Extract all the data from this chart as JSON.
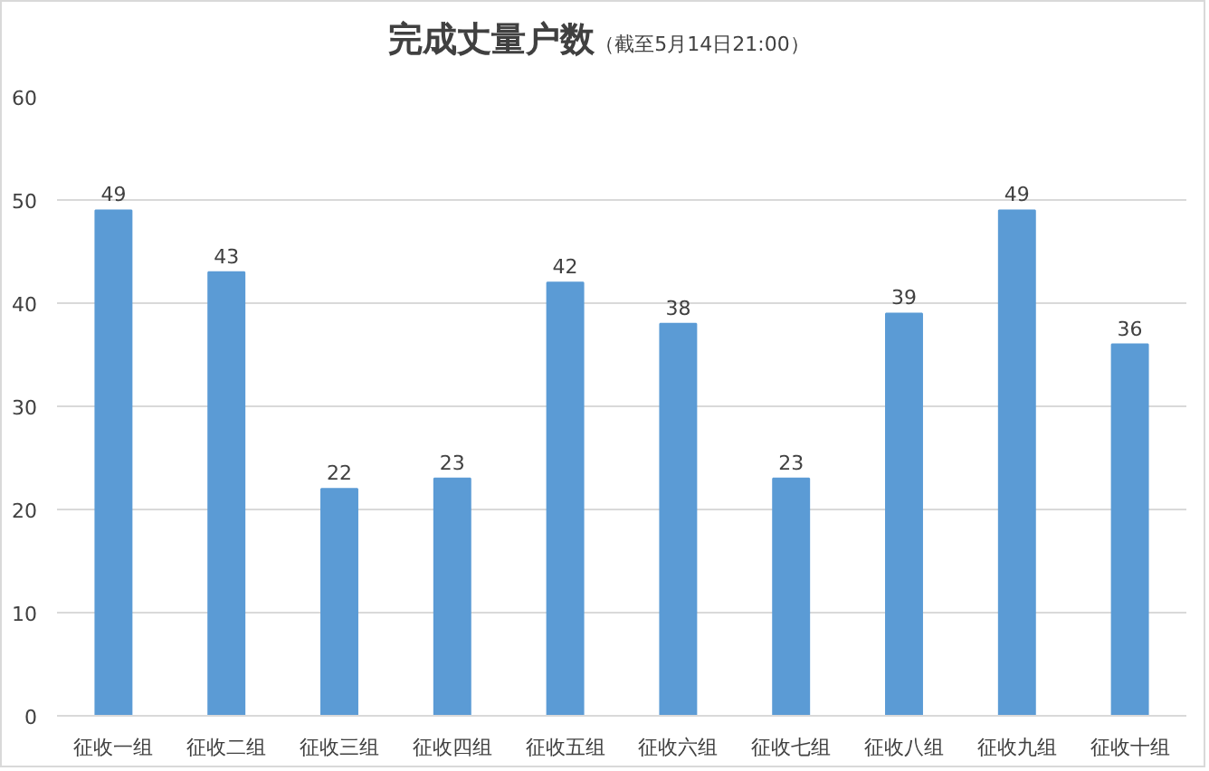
{
  "chart_data": {
    "type": "bar",
    "title": "完成丈量户数",
    "subtitle": "（截至5月14日21:00）",
    "categories": [
      "征收一组",
      "征收二组",
      "征收三组",
      "征收四组",
      "征收五组",
      "征收六组",
      "征收七组",
      "征收八组",
      "征收九组",
      "征收十组"
    ],
    "values": [
      49,
      43,
      22,
      23,
      42,
      38,
      23,
      39,
      49,
      36
    ],
    "color": "#5b9bd5",
    "ylim": [
      0,
      60
    ],
    "yticks": [
      0,
      10,
      20,
      30,
      40,
      50,
      60
    ],
    "grid": "y",
    "data_labels": true
  }
}
